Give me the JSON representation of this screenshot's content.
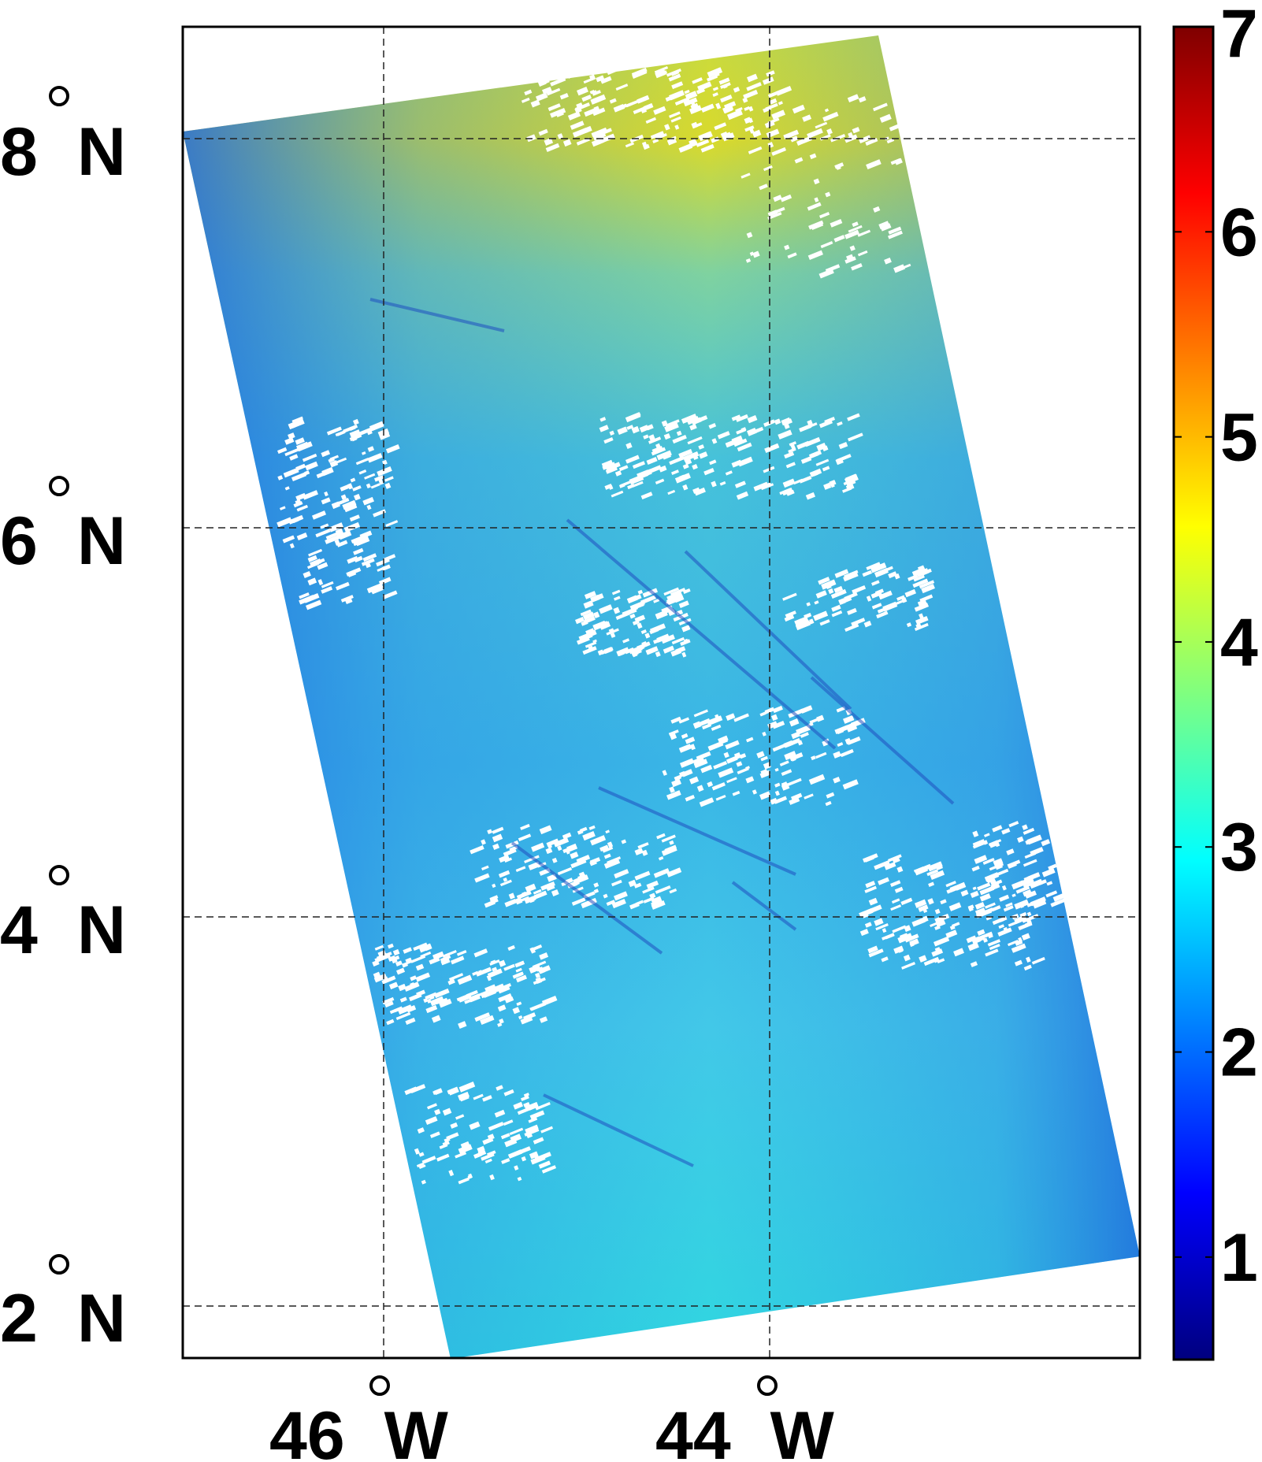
{
  "map": {
    "lat_labels": [
      {
        "deg": "8",
        "hemi": "N"
      },
      {
        "deg": "6",
        "hemi": "N"
      },
      {
        "deg": "4",
        "hemi": "N"
      },
      {
        "deg": "2",
        "hemi": "N"
      }
    ],
    "lon_labels": [
      {
        "deg": "46",
        "hemi": "W"
      },
      {
        "deg": "44",
        "hemi": "W"
      }
    ],
    "colormap": "jet",
    "swath_colors": {
      "low": "#1E6FE6",
      "mid": "#33C4E8",
      "high": "#D8DC2A",
      "clouds": "#FFFFFF"
    },
    "colorbar": {
      "min": 0.5,
      "max": 7,
      "ticks": [
        "1",
        "2",
        "3",
        "4",
        "5",
        "6",
        "7"
      ]
    },
    "grid": "dashed"
  }
}
